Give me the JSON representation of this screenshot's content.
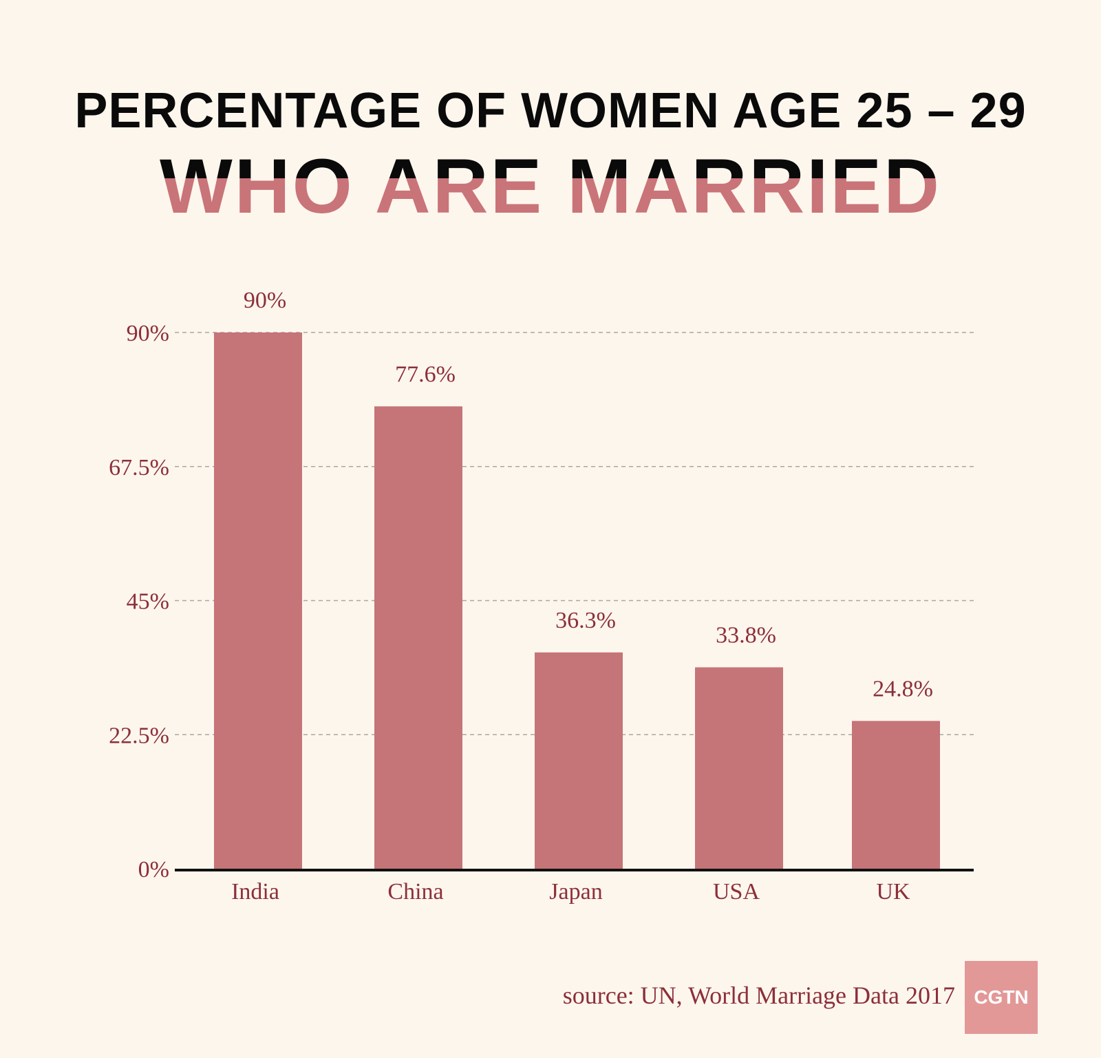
{
  "title": {
    "line1": "PERCENTAGE OF WOMEN AGE 25 – 29",
    "line2": "WHO ARE MARRIED"
  },
  "source": "source: UN, World Marriage Data 2017",
  "logo": "CGTN",
  "colors": {
    "background": "#fdf6ed",
    "bar": "#c57477",
    "label": "#8c2f39",
    "grid": "#a7a8a2",
    "axis": "#111111",
    "title_accent": "#c97478",
    "logo_bg": "#e39898"
  },
  "chart_data": {
    "type": "bar",
    "categories": [
      "India",
      "China",
      "Japan",
      "USA",
      "UK"
    ],
    "values": [
      90,
      77.6,
      36.3,
      33.8,
      24.8
    ],
    "value_labels": [
      "90%",
      "77.6%",
      "36.3%",
      "33.8%",
      "24.8%"
    ],
    "yticks": [
      0,
      22.5,
      45,
      67.5,
      90
    ],
    "ytick_labels": [
      "0%",
      "22.5%",
      "45%",
      "67.5%",
      "90%"
    ],
    "ylim": [
      0,
      90
    ],
    "grid": "horizontal dashed",
    "title": "PERCENTAGE OF WOMEN AGE 25 – 29 WHO ARE MARRIED",
    "xlabel": "",
    "ylabel": ""
  }
}
